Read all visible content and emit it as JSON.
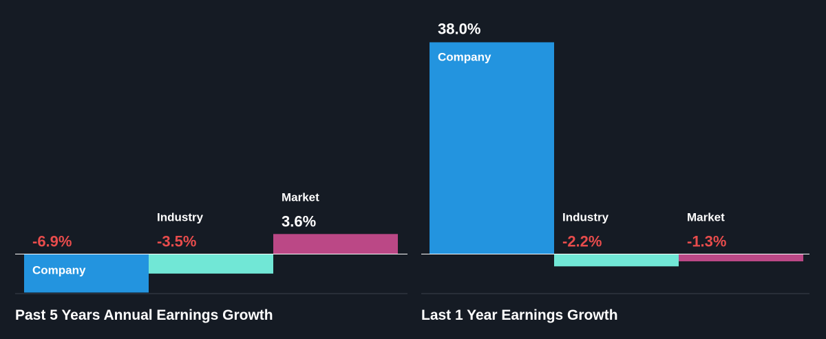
{
  "colors": {
    "background": "#151b24",
    "company": "#2394df",
    "industry": "#71e7d6",
    "market": "#bb4886",
    "negative_value": "#e84c4c",
    "positive_value": "#ffffff",
    "bar_label": "#ffffff",
    "title": "#ffffff",
    "baseline": "#ffffff",
    "separator": "#3a414b"
  },
  "chart_data": [
    {
      "type": "bar",
      "title": "Past 5 Years Annual Earnings Growth",
      "categories": [
        "Company",
        "Industry",
        "Market"
      ],
      "values": [
        -6.9,
        -3.5,
        3.6
      ],
      "value_labels": [
        "-6.9%",
        "-3.5%",
        "3.6%"
      ],
      "unit": "%",
      "grid": false,
      "legend": "none"
    },
    {
      "type": "bar",
      "title": "Last 1 Year Earnings Growth",
      "categories": [
        "Company",
        "Industry",
        "Market"
      ],
      "values": [
        38.0,
        -2.2,
        -1.3
      ],
      "value_labels": [
        "38.0%",
        "-2.2%",
        "-1.3%"
      ],
      "unit": "%",
      "grid": false,
      "legend": "none"
    }
  ]
}
